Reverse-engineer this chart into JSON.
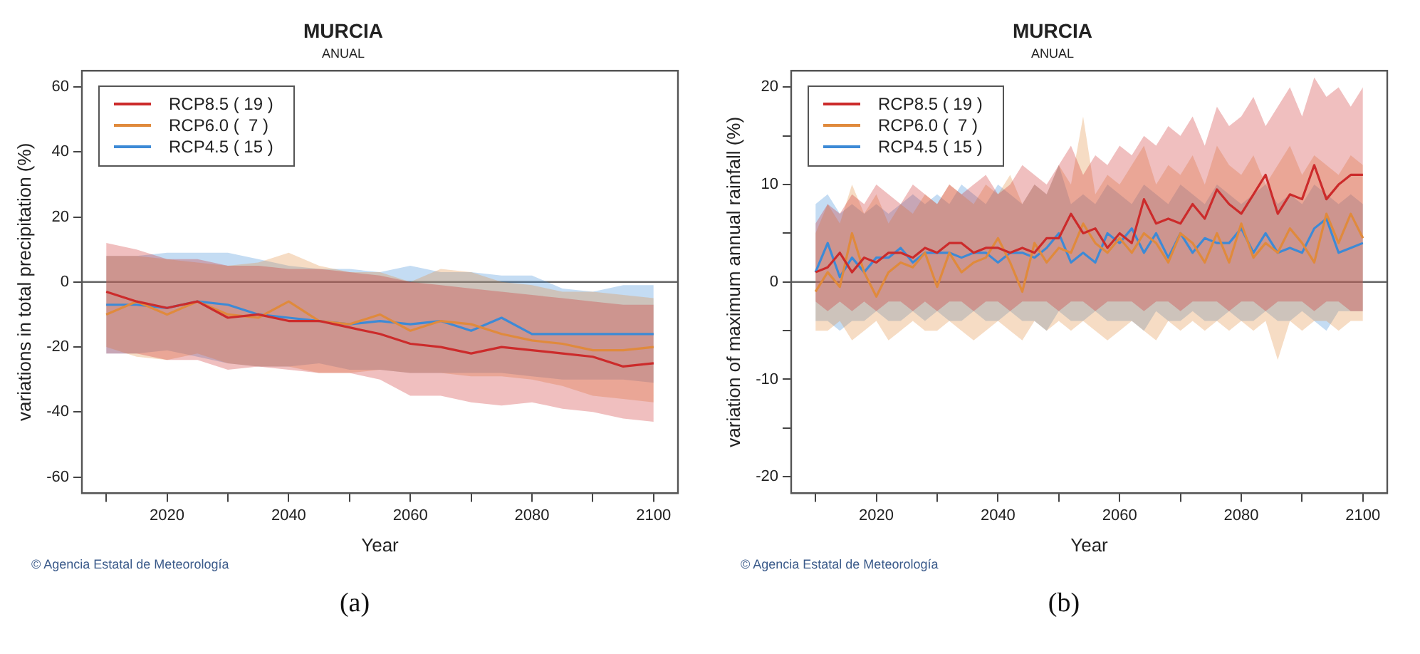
{
  "chart_data": [
    {
      "type": "line",
      "title": "MURCIA",
      "subtitle": "ANUAL",
      "xlabel": "Year",
      "ylabel": "variations in total precipitation (%)",
      "x": [
        2010,
        2015,
        2020,
        2025,
        2030,
        2035,
        2040,
        2045,
        2050,
        2055,
        2060,
        2065,
        2070,
        2075,
        2080,
        2085,
        2090,
        2095,
        2100
      ],
      "series": [
        {
          "name": "RCP8.5 ( 19 )",
          "color": "#cc2b2b",
          "values": [
            -3,
            -6,
            -8,
            -6,
            -11,
            -10,
            -12,
            -12,
            -14,
            -16,
            -19,
            -20,
            -22,
            -20,
            -21,
            -22,
            -23,
            -26,
            -25
          ],
          "lower": [
            -22,
            -22,
            -24,
            -24,
            -27,
            -26,
            -27,
            -28,
            -28,
            -30,
            -35,
            -35,
            -37,
            -38,
            -37,
            -39,
            -40,
            -42,
            -43
          ],
          "upper": [
            12,
            10,
            7,
            7,
            5,
            5,
            4,
            4,
            3,
            2,
            0,
            -1,
            -2,
            -3,
            -4,
            -5,
            -6,
            -7,
            -7
          ]
        },
        {
          "name": "RCP6.0 (  7 )",
          "color": "#e08a3c",
          "values": [
            -10,
            -6,
            -10,
            -6,
            -10,
            -11,
            -6,
            -12,
            -13,
            -10,
            -15,
            -12,
            -13,
            -16,
            -18,
            -19,
            -21,
            -21,
            -20
          ],
          "lower": [
            -20,
            -23,
            -24,
            -22,
            -25,
            -26,
            -26,
            -28,
            -28,
            -27,
            -28,
            -28,
            -29,
            -29,
            -30,
            -32,
            -35,
            -36,
            -37
          ],
          "upper": [
            8,
            8,
            7,
            6,
            5,
            6,
            9,
            5,
            3,
            3,
            0,
            4,
            3,
            0,
            -1,
            -3,
            -3,
            -4,
            -5
          ]
        },
        {
          "name": "RCP4.5 ( 15 )",
          "color": "#3d8ad6",
          "values": [
            -7,
            -7,
            -8,
            -6,
            -7,
            -10,
            -11,
            -12,
            -13,
            -12,
            -13,
            -12,
            -15,
            -11,
            -16,
            -16,
            -16,
            -16,
            -16
          ],
          "lower": [
            -22,
            -22,
            -21,
            -23,
            -25,
            -26,
            -26,
            -25,
            -27,
            -27,
            -28,
            -28,
            -28,
            -28,
            -29,
            -30,
            -30,
            -30,
            -31
          ],
          "upper": [
            8,
            8,
            9,
            9,
            9,
            7,
            5,
            4,
            4,
            3,
            5,
            3,
            3,
            2,
            2,
            -2,
            -3,
            -1,
            -1
          ]
        }
      ],
      "xlim": [
        2006,
        2104
      ],
      "xticks": [
        {
          "value": 2010,
          "label": null
        },
        2020,
        {
          "value": 2030,
          "label": null
        },
        2040,
        {
          "value": 2050,
          "label": null
        },
        2060,
        {
          "value": 2070,
          "label": null
        },
        2080,
        {
          "value": 2090,
          "label": null
        },
        2100
      ],
      "ylim": [
        -65,
        65
      ],
      "yticks": [
        -60,
        -40,
        -20,
        0,
        20,
        40,
        60
      ],
      "ref_lines": [
        {
          "axis": "y",
          "value": 0,
          "color": "#666666"
        }
      ],
      "legend": "top left",
      "line_style": "solid",
      "marker": "none",
      "annotations": [
        "© Agencia Estatal de Meteorología",
        "(a)"
      ]
    },
    {
      "type": "line",
      "title": "MURCIA",
      "subtitle": "ANUAL",
      "xlabel": "Year",
      "ylabel": "variation of maximum annual rainfall (%)",
      "x": [
        2010,
        2012,
        2014,
        2016,
        2018,
        2020,
        2022,
        2024,
        2026,
        2028,
        2030,
        2032,
        2034,
        2036,
        2038,
        2040,
        2042,
        2044,
        2046,
        2048,
        2050,
        2052,
        2054,
        2056,
        2058,
        2060,
        2062,
        2064,
        2066,
        2068,
        2070,
        2072,
        2074,
        2076,
        2078,
        2080,
        2082,
        2084,
        2086,
        2088,
        2090,
        2092,
        2094,
        2096,
        2098,
        2100
      ],
      "series": [
        {
          "name": "RCP8.5 ( 19 )",
          "color": "#cc2b2b",
          "values": [
            1,
            1.5,
            3,
            1,
            2.5,
            2,
            3,
            3,
            2.5,
            3.5,
            3,
            4,
            4,
            3,
            3.5,
            3.5,
            3,
            3.5,
            3,
            4.5,
            4.5,
            7,
            5,
            5.5,
            3.5,
            5,
            4,
            8.5,
            6,
            6.5,
            6,
            8,
            6.5,
            9.5,
            8,
            7,
            9,
            11,
            7,
            9,
            8.5,
            12,
            8.5,
            10,
            11,
            11
          ],
          "lower": [
            -2,
            -3,
            -2,
            -3,
            -2,
            -3,
            -2,
            -2,
            -3,
            -2,
            -3,
            -2,
            -2,
            -3,
            -2,
            -2,
            -3,
            -2,
            -2,
            -2,
            -3,
            -2,
            -2,
            -3,
            -2,
            -2,
            -2,
            -3,
            -2,
            -2,
            -3,
            -2,
            -2,
            -2,
            -3,
            -2,
            -2,
            -3,
            -2,
            -2,
            -2,
            -3,
            -2,
            -2,
            -3,
            -3
          ],
          "upper": [
            6,
            8,
            7,
            9,
            8,
            10,
            9,
            8,
            10,
            9,
            8,
            10,
            9,
            10,
            11,
            9,
            10,
            12,
            11,
            10,
            12,
            14,
            11,
            13,
            12,
            14,
            13,
            15,
            14,
            16,
            15,
            17,
            14,
            18,
            16,
            17,
            19,
            16,
            18,
            20,
            17,
            21,
            19,
            20,
            18,
            20
          ]
        },
        {
          "name": "RCP6.0 (  7 )",
          "color": "#e08a3c",
          "values": [
            -1,
            1,
            -0.5,
            5,
            1,
            -1.5,
            1,
            2,
            1.5,
            3,
            -0.5,
            3,
            1,
            2,
            2.5,
            4.5,
            2,
            -1,
            4,
            2,
            3.5,
            3,
            6,
            4,
            3,
            4.5,
            3,
            5,
            4,
            2,
            5,
            4,
            2,
            5,
            2,
            6,
            2.5,
            4,
            3,
            5.5,
            4,
            2,
            7,
            4,
            7,
            4.5
          ],
          "lower": [
            -5,
            -5,
            -4,
            -6,
            -5,
            -4,
            -6,
            -5,
            -4,
            -5,
            -5,
            -4,
            -5,
            -6,
            -5,
            -4,
            -5,
            -6,
            -4,
            -5,
            -4,
            -5,
            -4,
            -5,
            -6,
            -5,
            -4,
            -5,
            -6,
            -4,
            -5,
            -4,
            -5,
            -4,
            -5,
            -4,
            -5,
            -4,
            -8,
            -4,
            -5,
            -4,
            -4,
            -5,
            -4,
            -4
          ],
          "upper": [
            5,
            8,
            6,
            10,
            7,
            9,
            6,
            8,
            7,
            9,
            8,
            10,
            9,
            8,
            10,
            9,
            11,
            8,
            10,
            9,
            12,
            10,
            17,
            9,
            11,
            10,
            12,
            14,
            10,
            12,
            11,
            13,
            10,
            14,
            12,
            11,
            13,
            10,
            12,
            14,
            11,
            13,
            12,
            11,
            13,
            12
          ]
        },
        {
          "name": "RCP4.5 ( 15 )",
          "color": "#3d8ad6",
          "values": [
            1,
            4,
            0.5,
            2.5,
            1,
            2.5,
            2.5,
            3.5,
            2,
            3,
            3,
            3,
            2.5,
            3,
            3,
            2,
            3,
            3,
            2.5,
            3.5,
            5,
            2,
            3,
            2,
            5,
            4,
            5.5,
            3,
            5,
            2.5,
            5,
            3,
            4.5,
            4,
            4,
            5.5,
            3,
            5,
            3,
            3.5,
            3,
            5.5,
            6.5,
            3,
            3.5,
            4
          ],
          "lower": [
            -4,
            -4,
            -5,
            -4,
            -4,
            -3,
            -4,
            -4,
            -3,
            -4,
            -3,
            -4,
            -4,
            -3,
            -4,
            -4,
            -3,
            -4,
            -4,
            -5,
            -3,
            -4,
            -4,
            -3,
            -4,
            -4,
            -4,
            -5,
            -3,
            -4,
            -4,
            -3,
            -4,
            -4,
            -3,
            -4,
            -4,
            -3,
            -4,
            -4,
            -3,
            -4,
            -5,
            -3,
            -3,
            -3
          ],
          "upper": [
            8,
            9,
            7,
            8,
            7,
            8,
            7,
            8,
            9,
            8,
            9,
            8,
            10,
            9,
            8,
            10,
            9,
            8,
            10,
            9,
            12,
            8,
            9,
            8,
            10,
            9,
            8,
            10,
            9,
            8,
            10,
            9,
            8,
            10,
            9,
            8,
            9,
            10,
            8,
            9,
            8,
            10,
            9,
            8,
            9,
            8
          ]
        }
      ],
      "xlim": [
        2006,
        2104
      ],
      "xticks": [
        {
          "value": 2010,
          "label": null
        },
        2020,
        {
          "value": 2030,
          "label": null
        },
        2040,
        {
          "value": 2050,
          "label": null
        },
        2060,
        {
          "value": 2070,
          "label": null
        },
        2080,
        {
          "value": 2090,
          "label": null
        },
        2100
      ],
      "ylim": [
        -21.7,
        21.7
      ],
      "yticks": [
        -20,
        {
          "value": -15,
          "label": null
        },
        -10,
        {
          "value": -5,
          "label": null
        },
        0,
        {
          "value": 5,
          "label": null
        },
        10,
        {
          "value": 15,
          "label": null
        },
        20
      ],
      "ref_lines": [
        {
          "axis": "y",
          "value": 0,
          "color": "#666666"
        }
      ],
      "legend": "top left",
      "line_style": "solid",
      "marker": "none",
      "annotations": [
        "© Agencia Estatal de Meteorología",
        "(b)"
      ]
    }
  ]
}
